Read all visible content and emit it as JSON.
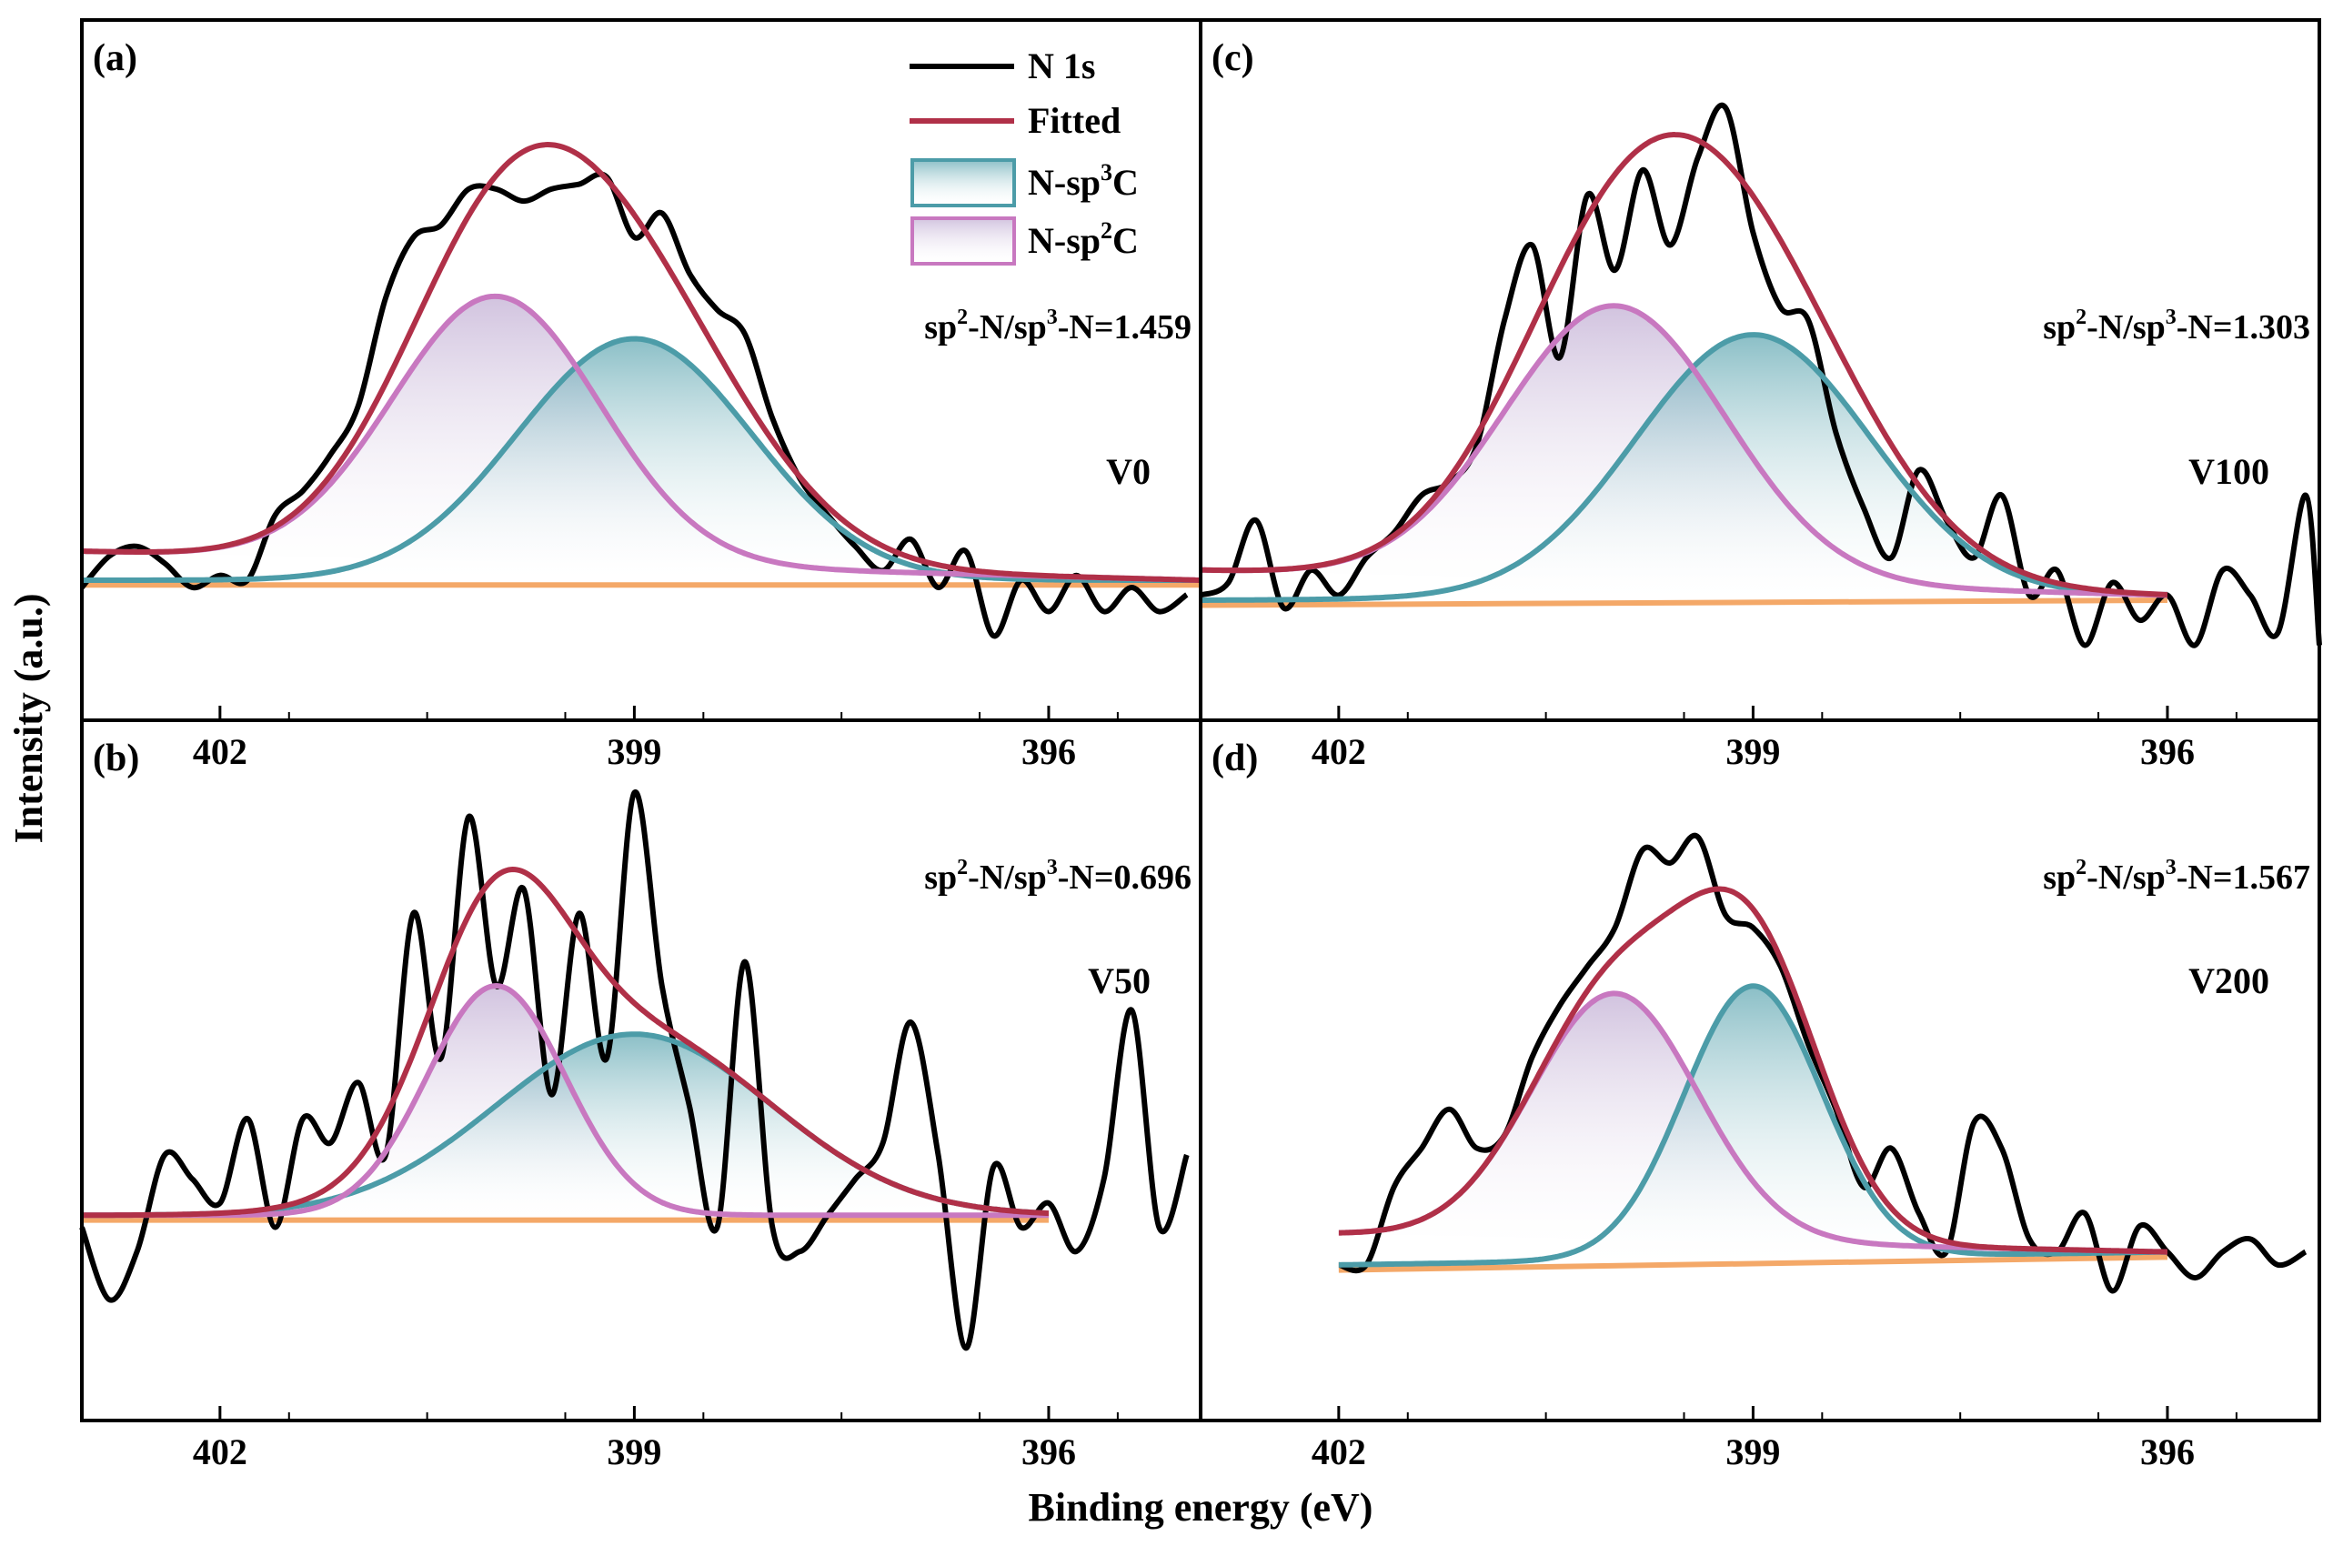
{
  "chart_data": {
    "type": "line",
    "shared": {
      "xlabel": "Binding energy (eV)",
      "ylabel": "Intensity (a.u.)",
      "xlim": [
        403,
        394.9
      ],
      "x_ticks": [
        402,
        399,
        396
      ],
      "x_tick_labels": [
        "402",
        "399",
        "396"
      ],
      "legend_names": [
        "N 1s",
        "Fitted",
        "N-sp3C",
        "N-sp2C"
      ],
      "colors": {
        "raw": "#000000",
        "fitted": "#b03048",
        "sp3": "#4c9ca8",
        "sp2": "#c878c0",
        "baseline": "#f4a868"
      }
    },
    "panels": [
      {
        "id": "a",
        "label": "(a)",
        "sample": "V0",
        "ratio": "1.459",
        "fit_range": [
          403,
          394.9
        ],
        "baseline_sp3": [
          0.08,
          0.08
        ],
        "baseline_sp2": [
          0.2,
          0.08
        ],
        "sp3_peak": {
          "center": 399.0,
          "height": 1.0,
          "sigma": 0.85
        },
        "sp2_peak": {
          "center": 400.0,
          "height": 1.1,
          "sigma": 0.75
        },
        "raw": {
          "x": [
            403.0,
            402.8,
            402.6,
            402.4,
            402.2,
            402.0,
            401.8,
            401.6,
            401.4,
            401.2,
            401.0,
            400.8,
            400.6,
            400.4,
            400.2,
            400.0,
            399.8,
            399.6,
            399.4,
            399.2,
            399.0,
            398.8,
            398.6,
            398.4,
            398.2,
            398.0,
            397.8,
            397.6,
            397.4,
            397.2,
            397.0,
            396.8,
            396.6,
            396.4,
            396.2,
            396.0,
            395.8,
            395.6,
            395.4,
            395.2,
            395.0
          ],
          "y": [
            0.05,
            0.18,
            0.22,
            0.15,
            0.05,
            0.1,
            0.08,
            0.35,
            0.45,
            0.6,
            0.8,
            1.25,
            1.5,
            1.55,
            1.7,
            1.7,
            1.65,
            1.7,
            1.72,
            1.75,
            1.5,
            1.6,
            1.35,
            1.2,
            1.1,
            0.75,
            0.5,
            0.35,
            0.22,
            0.12,
            0.25,
            0.05,
            0.2,
            -0.15,
            0.08,
            -0.05,
            0.1,
            -0.05,
            0.05,
            -0.05,
            0.02
          ]
        }
      },
      {
        "id": "b",
        "label": "(b)",
        "sample": "V50",
        "ratio": "0.696",
        "fit_range": [
          403,
          396
        ],
        "baseline_sp3": [
          0.05,
          0.05
        ],
        "baseline_sp2": [
          0.05,
          0.05
        ],
        "sp3_peak": {
          "center": 399.0,
          "height": 0.75,
          "sigma": 1.0
        },
        "sp2_peak": {
          "center": 400.0,
          "height": 0.95,
          "sigma": 0.5
        },
        "raw": {
          "x": [
            403.0,
            402.8,
            402.6,
            402.4,
            402.2,
            402.0,
            401.8,
            401.6,
            401.4,
            401.2,
            401.0,
            400.8,
            400.6,
            400.4,
            400.2,
            400.0,
            399.8,
            399.6,
            399.4,
            399.2,
            399.0,
            398.8,
            398.6,
            398.4,
            398.2,
            398.0,
            397.8,
            397.6,
            397.4,
            397.2,
            397.0,
            396.8,
            396.6,
            396.4,
            396.2,
            396.0,
            395.8,
            395.6,
            395.4,
            395.2,
            395.0
          ],
          "y": [
            0.0,
            -0.3,
            -0.1,
            0.3,
            0.2,
            0.1,
            0.45,
            0.0,
            0.45,
            0.35,
            0.6,
            0.3,
            1.3,
            0.7,
            1.7,
            1.0,
            1.4,
            0.55,
            1.3,
            0.7,
            1.8,
            1.0,
            0.5,
            0.0,
            1.1,
            0.0,
            -0.1,
            0.05,
            0.2,
            0.35,
            0.85,
            0.3,
            -0.5,
            0.25,
            0.0,
            0.1,
            -0.1,
            0.2,
            0.9,
            0.0,
            0.3
          ]
        }
      },
      {
        "id": "c",
        "label": "(c)",
        "sample": "V100",
        "ratio": "1.303",
        "fit_range": [
          403,
          396
        ],
        "baseline_sp3": [
          0.08,
          0.1
        ],
        "baseline_sp2": [
          0.2,
          0.1
        ],
        "sp3_peak": {
          "center": 399.0,
          "height": 1.05,
          "sigma": 0.85
        },
        "sp2_peak": {
          "center": 400.0,
          "height": 1.1,
          "sigma": 0.8
        },
        "raw": {
          "x": [
            403.0,
            402.8,
            402.6,
            402.4,
            402.2,
            402.0,
            401.8,
            401.6,
            401.4,
            401.2,
            401.0,
            400.8,
            400.6,
            400.4,
            400.2,
            400.0,
            399.8,
            399.6,
            399.4,
            399.2,
            399.0,
            398.8,
            398.6,
            398.4,
            398.2,
            398.0,
            397.8,
            397.6,
            397.4,
            397.2,
            397.0,
            396.8,
            396.6,
            396.4,
            396.2,
            396.0,
            395.8,
            395.6,
            395.4,
            395.2,
            395.0,
            394.9
          ],
          "y": [
            0.1,
            0.15,
            0.4,
            0.05,
            0.2,
            0.1,
            0.25,
            0.35,
            0.5,
            0.55,
            0.7,
            1.2,
            1.5,
            1.05,
            1.7,
            1.4,
            1.8,
            1.5,
            1.85,
            2.05,
            1.55,
            1.25,
            1.2,
            0.75,
            0.45,
            0.25,
            0.6,
            0.4,
            0.25,
            0.5,
            0.1,
            0.2,
            -0.1,
            0.15,
            0.0,
            0.1,
            -0.1,
            0.2,
            0.1,
            -0.05,
            0.5,
            -0.1
          ]
        }
      },
      {
        "id": "d",
        "label": "(d)",
        "sample": "V200",
        "ratio": "1.567",
        "fit_range": [
          402,
          396
        ],
        "baseline_sp3": [
          0.0,
          0.05
        ],
        "baseline_sp2": [
          0.12,
          0.05
        ],
        "sp3_peak": {
          "center": 399.0,
          "height": 1.05,
          "sigma": 0.5
        },
        "sp2_peak": {
          "center": 400.0,
          "height": 0.95,
          "sigma": 0.6
        },
        "raw": {
          "x": [
            402.0,
            401.8,
            401.6,
            401.4,
            401.2,
            401.0,
            400.8,
            400.6,
            400.4,
            400.2,
            400.0,
            399.8,
            399.6,
            399.4,
            399.2,
            399.0,
            398.8,
            398.6,
            398.4,
            398.2,
            398.0,
            397.8,
            397.6,
            397.4,
            397.2,
            397.0,
            396.8,
            396.6,
            396.4,
            396.2,
            396.0,
            395.8,
            395.6,
            395.4,
            395.2,
            395.0
          ],
          "y": [
            0.0,
            0.0,
            0.3,
            0.45,
            0.6,
            0.45,
            0.5,
            0.8,
            1.0,
            1.15,
            1.3,
            1.6,
            1.55,
            1.65,
            1.35,
            1.3,
            1.15,
            0.85,
            0.6,
            0.3,
            0.45,
            0.2,
            0.05,
            0.55,
            0.45,
            0.1,
            0.05,
            0.2,
            -0.1,
            0.15,
            0.05,
            -0.05,
            0.05,
            0.1,
            0.0,
            0.05
          ]
        }
      }
    ]
  }
}
